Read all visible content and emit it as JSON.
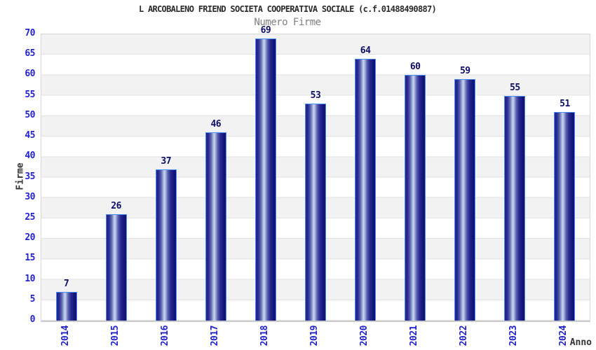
{
  "chart_data": {
    "type": "bar",
    "title": "L ARCOBALENO FRIEND SOCIETA COOPERATIVA SOCIALE (c.f.01488490887)",
    "subtitle": "Numero Firme",
    "xlabel": "Anno",
    "ylabel": "Firme",
    "categories": [
      "2014",
      "2015",
      "2016",
      "2017",
      "2018",
      "2019",
      "2020",
      "2021",
      "2022",
      "2023",
      "2024"
    ],
    "values": [
      7,
      26,
      37,
      46,
      69,
      53,
      64,
      60,
      59,
      55,
      51
    ],
    "ylim": [
      0,
      70
    ],
    "ytick_step": 5,
    "grid": "horizontal-bands-alternating",
    "legend": "none",
    "colors": {
      "tick_label": "#2222cc",
      "value_label": "#0d0d6b",
      "bar_dark": "#1b1b80",
      "bar_light": "#ccd6f0",
      "bar_border": "#4a8cf0",
      "band_gray": "#f2f2f2",
      "band_white": "#ffffff",
      "title_text": "#2b2b2b",
      "subtitle_text": "#808080"
    }
  }
}
